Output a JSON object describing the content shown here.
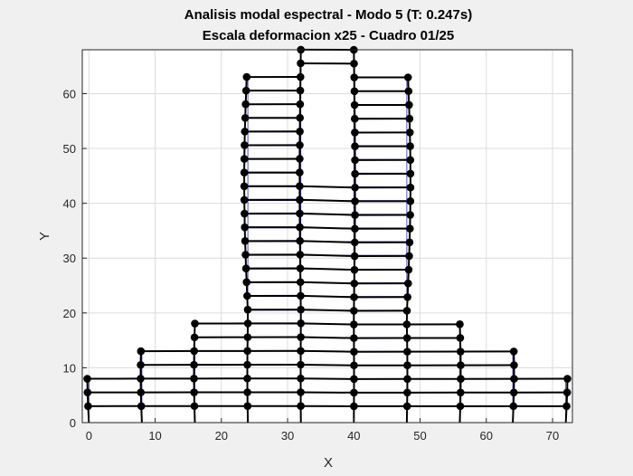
{
  "chart_data": {
    "type": "line",
    "title": "Analisis modal espectral - Modo 5 (T: 0.247s)",
    "subtitle": "Escala deformacion x25 - Cuadro 01/25",
    "xlabel": "X",
    "ylabel": "Y",
    "xlim": [
      -1,
      73
    ],
    "ylim": [
      0,
      68
    ],
    "xticks": [
      0,
      10,
      20,
      30,
      40,
      50,
      60,
      70
    ],
    "yticks": [
      0,
      10,
      20,
      30,
      40,
      50,
      60
    ],
    "grid": true,
    "legend": "none",
    "colors": {
      "deformed": "#000000",
      "undeformed": "#2020c0",
      "grid": "#dcdcdc",
      "axes_bg": "#ffffff",
      "figure_bg": "#f0f0f0"
    },
    "structure": {
      "column_lines_x": [
        0,
        8,
        16,
        24,
        32,
        40,
        48,
        56,
        64,
        72
      ],
      "story_height": 2.5,
      "floor_levels": [
        [
          0,
          72,
          [
            3,
            5.5,
            8
          ]
        ],
        [
          8,
          64,
          [
            10.5,
            13
          ]
        ],
        [
          16,
          56,
          [
            15.5,
            18
          ]
        ],
        [
          24,
          48,
          [
            20.5,
            23,
            25.5,
            28,
            30.5,
            33,
            35.5,
            38,
            40.5,
            43,
            45.5,
            48,
            50.5,
            53,
            55.5,
            58,
            60.5,
            63
          ]
        ],
        [
          32,
          40,
          [
            65.5,
            68
          ]
        ]
      ],
      "top_opening_between_x": [
        32,
        40
      ],
      "top_opening_from_y": 45.5
    }
  }
}
